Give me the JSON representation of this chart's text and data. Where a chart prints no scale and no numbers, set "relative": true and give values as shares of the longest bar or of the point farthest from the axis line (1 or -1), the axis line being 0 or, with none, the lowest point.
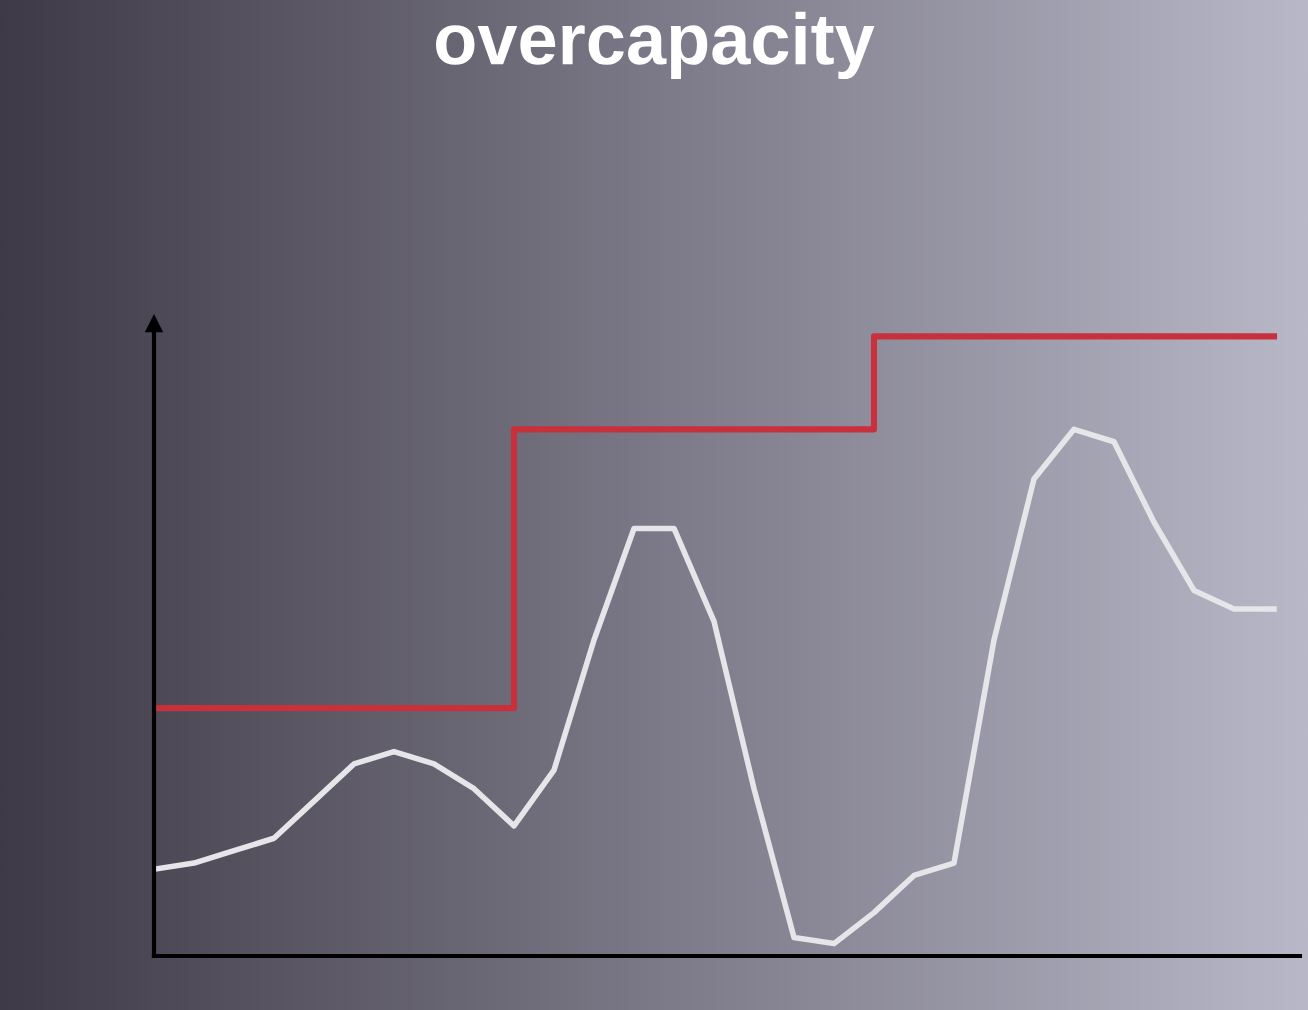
{
  "chart_data": {
    "type": "line",
    "title": "overcapacity",
    "relative": true,
    "grid": false,
    "marker": "none",
    "line_style": "solid",
    "categories": [
      null,
      null,
      null,
      null,
      null,
      null,
      null,
      null,
      null,
      null,
      null,
      null,
      null,
      null,
      null,
      null,
      null,
      null,
      null,
      null,
      null,
      null,
      null,
      null,
      null,
      null,
      null,
      null,
      null
    ],
    "series": [
      {
        "type": "step",
        "color": "#c8303c",
        "values": [
          0.4,
          0.4,
          0.4,
          0.4,
          0.4,
          0.4,
          0.4,
          0.4,
          0.4,
          0.85,
          0.85,
          0.85,
          0.85,
          0.85,
          0.85,
          0.85,
          0.85,
          0.85,
          1.0,
          1.0,
          1.0,
          1.0,
          1.0,
          1.0,
          1.0,
          1.0,
          1.0,
          1.0,
          1.0
        ]
      },
      {
        "color": "#e6e6ea",
        "values": [
          0.14,
          0.15,
          0.17,
          0.19,
          0.25,
          0.31,
          0.33,
          0.31,
          0.27,
          0.21,
          0.3,
          0.51,
          0.69,
          0.69,
          0.54,
          0.27,
          0.03,
          0.02,
          0.07,
          0.13,
          0.15,
          0.51,
          0.77,
          0.85,
          0.83,
          0.7,
          0.59,
          0.56,
          0.56
        ]
      }
    ]
  }
}
